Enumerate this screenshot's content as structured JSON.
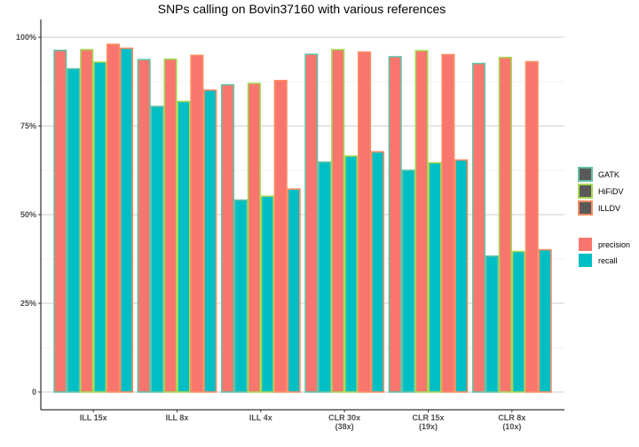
{
  "chart_data": {
    "type": "bar",
    "title": "SNPs calling on Bovin37160 with various references",
    "xlabel": "",
    "ylabel": "",
    "categories": [
      "ILL 15x",
      "ILL 8x",
      "ILL 4x",
      "CLR 30x\n(38x)",
      "CLR 15x\n(19x)",
      "CLR 8x\n(10x)"
    ],
    "ylim": [
      0,
      1
    ],
    "yticks": [
      0,
      0.25,
      0.5,
      0.75,
      1.0
    ],
    "ytick_labels": [
      "0",
      "25%",
      "50%",
      "75%",
      "100%"
    ],
    "grid": true,
    "legend_position": "right",
    "tools": [
      "GATK",
      "HiFiDV",
      "ILLDV"
    ],
    "metrics": [
      "precision",
      "recall"
    ],
    "tool_colors": {
      "GATK": "#66c2a5",
      "HiFiDV": "#a6d854",
      "ILLDV": "#fc8d62"
    },
    "metric_colors": {
      "precision": "#f8766d",
      "recall": "#00bfc4"
    },
    "series": [
      {
        "tool": "GATK",
        "metric": "precision",
        "values": [
          0.963,
          0.937,
          0.866,
          0.952,
          0.945,
          0.926
        ]
      },
      {
        "tool": "GATK",
        "metric": "recall",
        "values": [
          0.911,
          0.805,
          0.541,
          0.648,
          0.625,
          0.383
        ]
      },
      {
        "tool": "HiFiDV",
        "metric": "precision",
        "values": [
          0.965,
          0.938,
          0.87,
          0.965,
          0.962,
          0.943
        ]
      },
      {
        "tool": "HiFiDV",
        "metric": "recall",
        "values": [
          0.93,
          0.819,
          0.552,
          0.665,
          0.646,
          0.396
        ]
      },
      {
        "tool": "ILLDV",
        "metric": "precision",
        "values": [
          0.98,
          0.949,
          0.878,
          0.958,
          0.951,
          0.931
        ]
      },
      {
        "tool": "ILLDV",
        "metric": "recall",
        "values": [
          0.969,
          0.851,
          0.572,
          0.677,
          0.654,
          0.401
        ]
      }
    ]
  }
}
